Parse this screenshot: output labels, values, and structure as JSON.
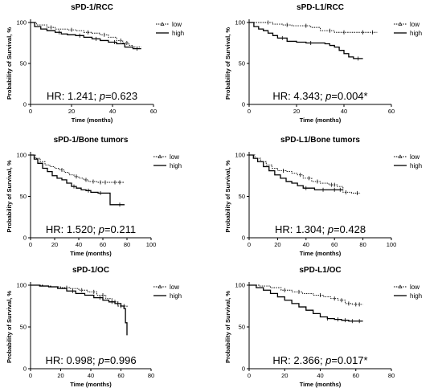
{
  "chart_data": [
    {
      "type": "line",
      "title": "sPD-1/RCC",
      "xlabel": "Time (months)",
      "ylabel": "Probability of Survival, %",
      "xlim": [
        0,
        60
      ],
      "xticks": [
        0,
        20,
        40,
        60
      ],
      "ylim": [
        0,
        100
      ],
      "yticks": [
        0,
        50,
        100
      ],
      "legend_position": "top-right",
      "stat": {
        "hr": "HR: 1.241; ",
        "p_symbol": "p",
        "p_value": "=0.623"
      },
      "series": [
        {
          "name": "low",
          "style": "dotted",
          "x": [
            0,
            3,
            8,
            12,
            18,
            22,
            26,
            30,
            34,
            38,
            42,
            45,
            48,
            50,
            54
          ],
          "y": [
            100,
            97,
            94,
            92,
            91,
            90,
            88,
            87,
            85,
            82,
            78,
            75,
            72,
            70,
            70
          ],
          "censor": [
            10,
            20,
            28,
            36,
            44,
            47
          ]
        },
        {
          "name": "high",
          "style": "solid",
          "x": [
            0,
            2,
            5,
            8,
            12,
            15,
            18,
            22,
            26,
            30,
            34,
            38,
            42,
            46,
            50,
            54
          ],
          "y": [
            100,
            95,
            92,
            90,
            88,
            86,
            85,
            84,
            82,
            80,
            78,
            76,
            74,
            70,
            68,
            68
          ],
          "censor": [
            14,
            24,
            32,
            41,
            52
          ]
        }
      ]
    },
    {
      "type": "line",
      "title": "sPD-L1/RCC",
      "xlabel": "Time (months)",
      "ylabel": "Probability of Survival, %",
      "xlim": [
        0,
        60
      ],
      "xticks": [
        0,
        20,
        40,
        60
      ],
      "ylim": [
        0,
        100
      ],
      "yticks": [
        0,
        50,
        100
      ],
      "legend_position": "top-right",
      "stat": {
        "hr": "HR: 4.343; ",
        "p_symbol": "p",
        "p_value": "=0.004*"
      },
      "series": [
        {
          "name": "low",
          "style": "dotted",
          "x": [
            0,
            5,
            10,
            14,
            18,
            22,
            26,
            30,
            36,
            44,
            54
          ],
          "y": [
            100,
            100,
            98,
            97,
            96,
            96,
            94,
            90,
            88,
            88,
            88
          ],
          "censor": [
            8,
            16,
            24,
            34,
            40,
            48,
            52
          ]
        },
        {
          "name": "high",
          "style": "solid",
          "x": [
            0,
            2,
            4,
            6,
            8,
            10,
            12,
            16,
            20,
            24,
            28,
            32,
            34,
            36,
            38,
            40,
            42,
            44,
            48
          ],
          "y": [
            100,
            95,
            92,
            90,
            87,
            84,
            81,
            77,
            76,
            75,
            75,
            74,
            72,
            70,
            66,
            62,
            58,
            56,
            56
          ],
          "censor": [
            14,
            26,
            46
          ]
        }
      ]
    },
    {
      "type": "line",
      "title": "sPD-1/Bone tumors",
      "xlabel": "Time (months)",
      "ylabel": "Probability of Survival, %",
      "xlim": [
        0,
        100
      ],
      "xticks": [
        0,
        20,
        40,
        60,
        80,
        100
      ],
      "ylim": [
        0,
        100
      ],
      "yticks": [
        0,
        50,
        100
      ],
      "legend_position": "top-right",
      "stat": {
        "hr": "HR: 1.520; ",
        "p_symbol": "p",
        "p_value": "=0.211"
      },
      "series": [
        {
          "name": "low",
          "style": "dotted",
          "x": [
            0,
            4,
            8,
            12,
            16,
            20,
            24,
            28,
            32,
            36,
            40,
            44,
            48,
            55,
            65,
            78
          ],
          "y": [
            100,
            96,
            92,
            88,
            86,
            84,
            82,
            79,
            76,
            74,
            72,
            70,
            68,
            67,
            67,
            67
          ],
          "censor": [
            26,
            38,
            46,
            52,
            58,
            62,
            70,
            74
          ]
        },
        {
          "name": "high",
          "style": "solid",
          "x": [
            0,
            3,
            6,
            10,
            14,
            18,
            22,
            26,
            30,
            34,
            38,
            42,
            46,
            50,
            56,
            62,
            66,
            78
          ],
          "y": [
            100,
            95,
            90,
            84,
            80,
            75,
            72,
            70,
            66,
            62,
            60,
            58,
            57,
            55,
            54,
            54,
            40,
            40
          ],
          "censor": [
            36,
            48,
            58,
            74
          ]
        }
      ]
    },
    {
      "type": "line",
      "title": "sPD-L1/Bone tumors",
      "xlabel": "Time (months)",
      "ylabel": "Probability of Survival, %",
      "xlim": [
        0,
        100
      ],
      "xticks": [
        0,
        20,
        40,
        60,
        80,
        100
      ],
      "ylim": [
        0,
        100
      ],
      "yticks": [
        0,
        50,
        100
      ],
      "legend_position": "top-right",
      "stat": {
        "hr": "HR: 1.304; ",
        "p_symbol": "p",
        "p_value": "=0.428"
      },
      "series": [
        {
          "name": "low",
          "style": "dotted",
          "x": [
            0,
            4,
            8,
            12,
            16,
            20,
            26,
            30,
            34,
            38,
            44,
            50,
            56,
            62,
            66,
            72,
            78
          ],
          "y": [
            100,
            96,
            92,
            88,
            84,
            81,
            80,
            78,
            76,
            72,
            68,
            66,
            64,
            62,
            55,
            54,
            54
          ],
          "censor": [
            24,
            36,
            42,
            48,
            58,
            60,
            68,
            76
          ]
        },
        {
          "name": "high",
          "style": "solid",
          "x": [
            0,
            3,
            6,
            10,
            14,
            18,
            22,
            26,
            30,
            34,
            38,
            42,
            46,
            50,
            56,
            62,
            66
          ],
          "y": [
            100,
            96,
            92,
            86,
            81,
            76,
            72,
            68,
            66,
            63,
            60,
            60,
            58,
            58,
            58,
            58,
            58
          ],
          "censor": [
            40,
            52,
            60,
            64
          ]
        }
      ]
    },
    {
      "type": "line",
      "title": "sPD-1/OC",
      "xlabel": "Time (months)",
      "ylabel": "Probability of Survival, %",
      "xlim": [
        0,
        80
      ],
      "xticks": [
        0,
        20,
        40,
        60,
        80
      ],
      "ylim": [
        0,
        100
      ],
      "yticks": [
        0,
        50,
        100
      ],
      "legend_position": "top-right",
      "stat": {
        "hr": "HR: 0.998; ",
        "p_symbol": "p",
        "p_value": "=0.996"
      },
      "series": [
        {
          "name": "low",
          "style": "dotted",
          "x": [
            0,
            8,
            14,
            20,
            26,
            32,
            38,
            44,
            50,
            54,
            58,
            64
          ],
          "y": [
            100,
            99,
            98,
            97,
            96,
            94,
            92,
            88,
            84,
            80,
            75,
            73
          ],
          "censor": [
            24,
            34,
            42,
            48,
            56,
            60,
            62
          ]
        },
        {
          "name": "high",
          "style": "solid",
          "x": [
            0,
            6,
            12,
            18,
            24,
            30,
            36,
            42,
            48,
            52,
            56,
            60,
            62,
            63,
            64
          ],
          "y": [
            100,
            99,
            98,
            96,
            93,
            90,
            88,
            85,
            82,
            80,
            78,
            75,
            72,
            55,
            40
          ],
          "censor": [
            28,
            46,
            54,
            58
          ]
        }
      ]
    },
    {
      "type": "line",
      "title": "sPD-L1/OC",
      "xlabel": "Time (months)",
      "ylabel": "Probability of Survival, %",
      "xlim": [
        0,
        80
      ],
      "xticks": [
        0,
        20,
        40,
        60,
        80
      ],
      "ylim": [
        0,
        100
      ],
      "yticks": [
        0,
        50,
        100
      ],
      "legend_position": "top-right",
      "stat": {
        "hr": "HR: 2.366; ",
        "p_symbol": "p",
        "p_value": "=0.017*"
      },
      "series": [
        {
          "name": "low",
          "style": "dotted",
          "x": [
            0,
            6,
            12,
            18,
            24,
            30,
            36,
            42,
            46,
            50,
            54,
            58,
            64
          ],
          "y": [
            100,
            99,
            97,
            94,
            92,
            90,
            88,
            86,
            84,
            82,
            78,
            77,
            77
          ],
          "censor": [
            20,
            28,
            40,
            48,
            52,
            56,
            60,
            62
          ]
        },
        {
          "name": "high",
          "style": "solid",
          "x": [
            0,
            4,
            8,
            12,
            16,
            20,
            24,
            28,
            32,
            36,
            40,
            44,
            48,
            52,
            56,
            64
          ],
          "y": [
            100,
            97,
            94,
            90,
            86,
            82,
            78,
            74,
            70,
            66,
            62,
            60,
            59,
            58,
            57,
            57
          ],
          "censor": [
            44,
            50,
            54,
            58,
            62
          ]
        }
      ]
    }
  ]
}
